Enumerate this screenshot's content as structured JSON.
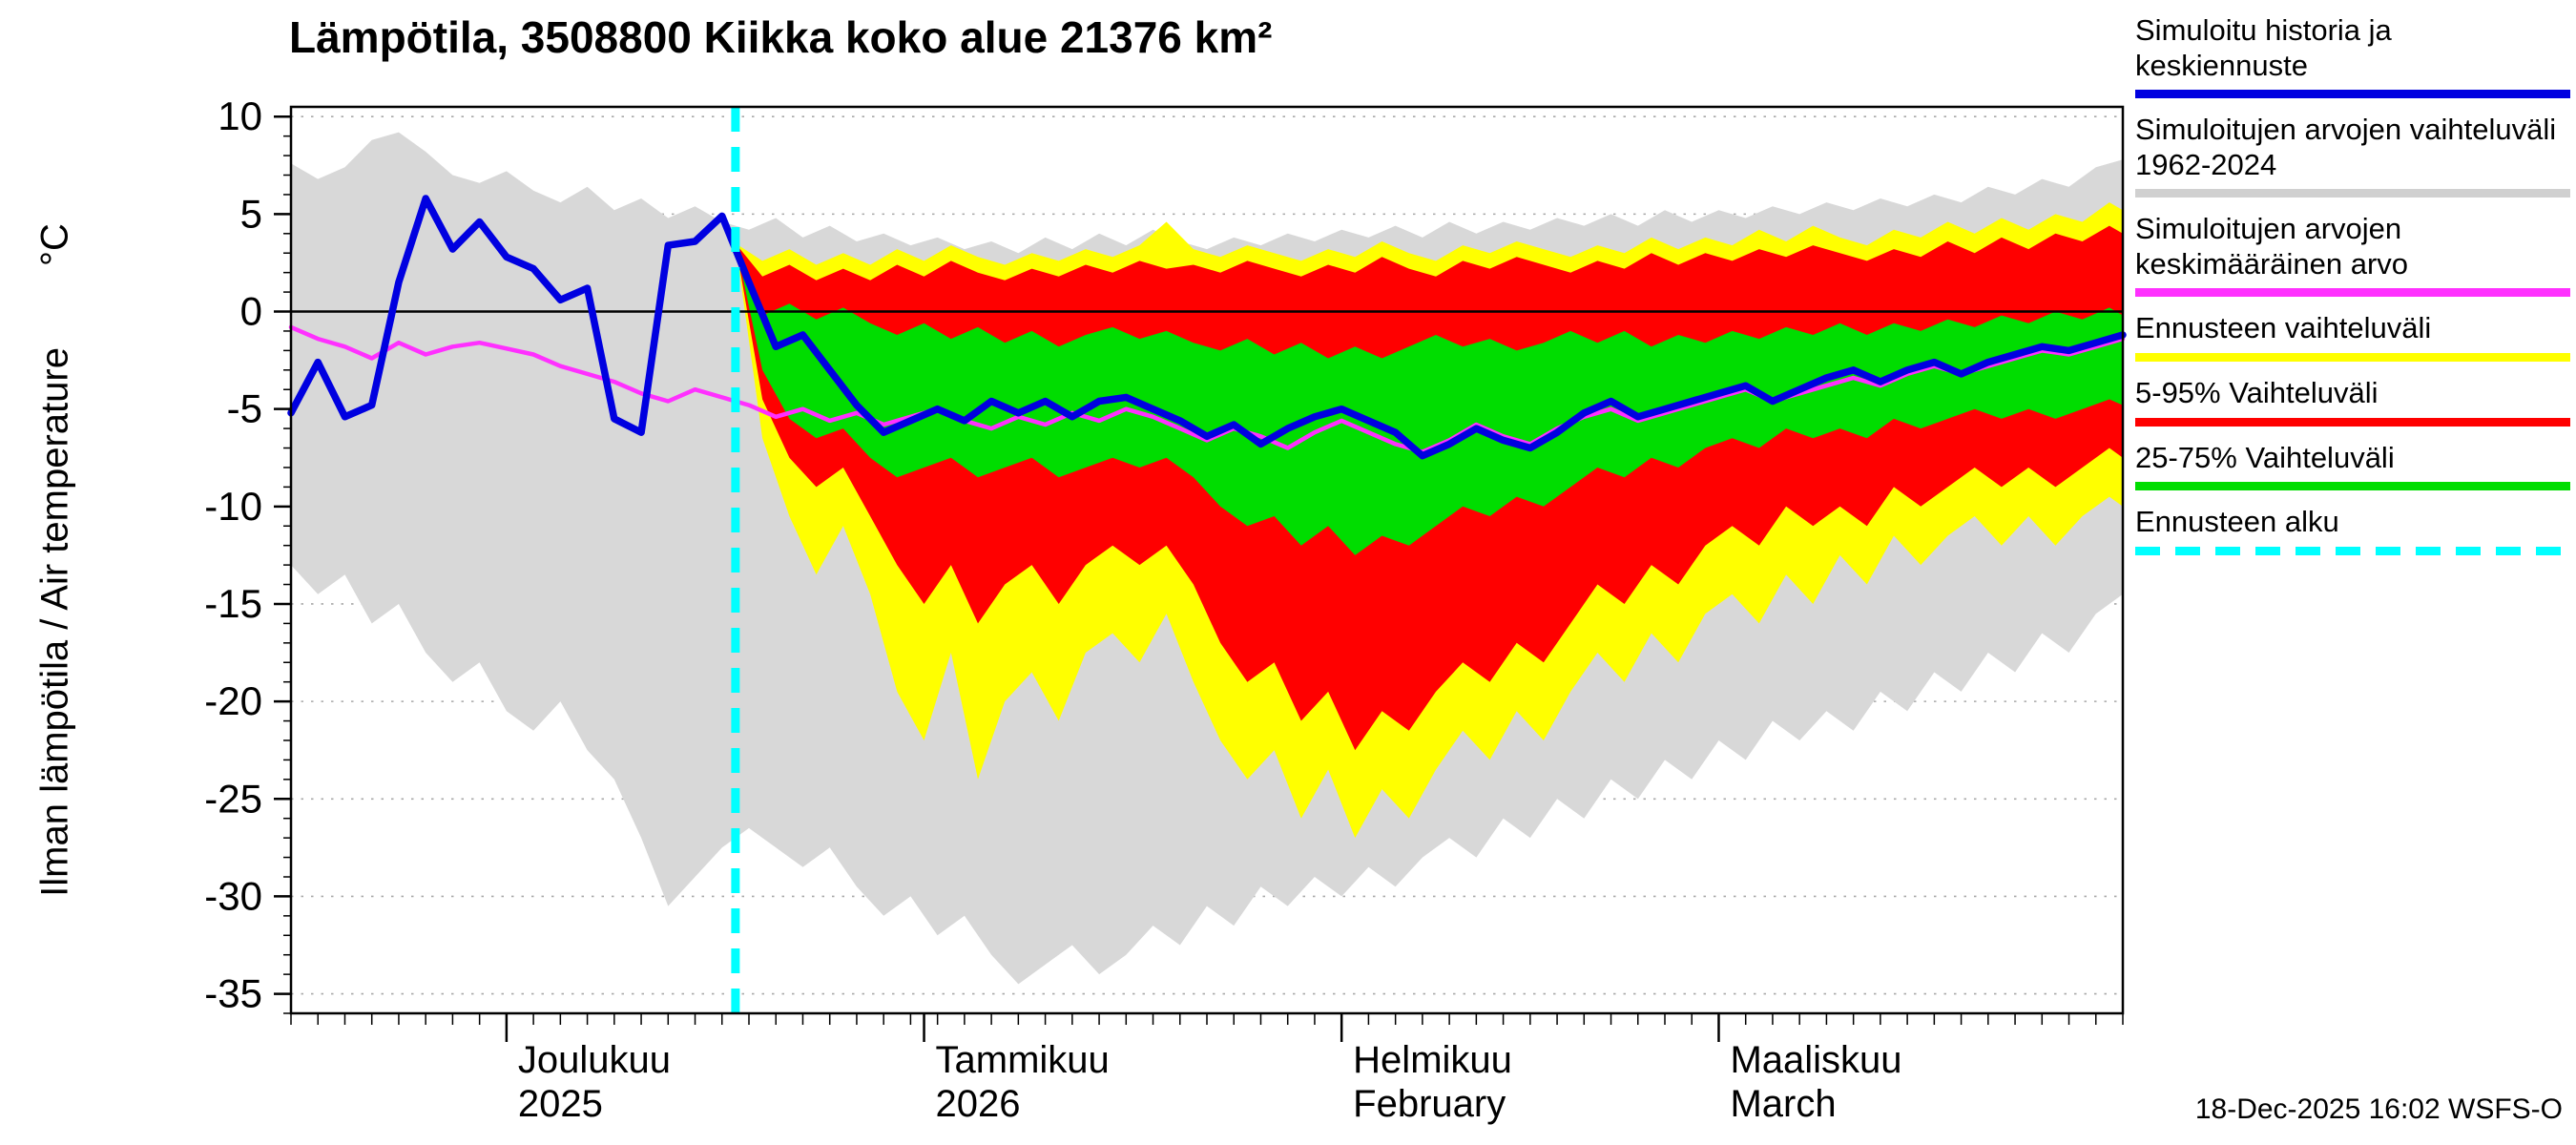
{
  "chart_data": {
    "type": "area",
    "title": "Lämpötila, 3508800 Kiikka koko alue 21376 km²",
    "ylabel": "Ilman lämpötila / Air temperature",
    "y_unit": "°C",
    "ylim": [
      -36,
      10.5
    ],
    "yticks": [
      10,
      5,
      0,
      -5,
      -10,
      -15,
      -20,
      -25,
      -30,
      -35
    ],
    "x_max_day": 136,
    "x_minor_tick_step_days": 2,
    "month_ticks": [
      {
        "day": 16,
        "line1": "Joulukuu",
        "line2": "2025"
      },
      {
        "day": 47,
        "line1": "Tammikuu",
        "line2": "2026"
      },
      {
        "day": 78,
        "line1": "Helmikuu",
        "line2": "February"
      },
      {
        "day": 106,
        "line1": "Maaliskuu",
        "line2": "March"
      }
    ],
    "forecast_start_day": 33,
    "forecast_start_color": "#00ffff",
    "zero_line": true,
    "bands": [
      {
        "name": "simulated-history-range",
        "legend": "Simuloitujen arvojen vaihteluväli 1962-2024",
        "color": "#d8d8d8",
        "x0": 0,
        "step": 2,
        "upper": [
          7.6,
          6.8,
          7.4,
          8.8,
          9.2,
          8.2,
          7.0,
          6.6,
          7.2,
          6.2,
          5.6,
          6.4,
          5.2,
          5.8,
          4.8,
          5.4,
          4.6,
          4.2,
          4.8,
          3.8,
          4.4,
          3.6,
          4.0,
          3.4,
          3.8,
          3.2,
          3.6,
          3.0,
          3.8,
          3.2,
          4.0,
          3.4,
          4.2,
          3.6,
          3.2,
          3.8,
          3.4,
          4.0,
          3.6,
          4.2,
          3.8,
          4.4,
          3.8,
          4.6,
          4.0,
          4.6,
          4.2,
          4.8,
          4.4,
          5.0,
          4.4,
          5.2,
          4.6,
          5.2,
          4.8,
          5.4,
          5.0,
          5.6,
          5.2,
          5.8,
          5.4,
          6.0,
          5.6,
          6.4,
          6.0,
          6.8,
          6.4,
          7.4,
          7.8
        ],
        "lower": [
          -13.0,
          -14.5,
          -13.5,
          -16.0,
          -15.0,
          -17.5,
          -19.0,
          -18.0,
          -20.5,
          -21.5,
          -20.0,
          -22.5,
          -24.0,
          -27.0,
          -30.5,
          -29.0,
          -27.5,
          -26.5,
          -27.5,
          -28.5,
          -27.5,
          -29.5,
          -31.0,
          -30.0,
          -32.0,
          -31.0,
          -33.0,
          -34.5,
          -33.5,
          -32.5,
          -34.0,
          -33.0,
          -31.5,
          -32.5,
          -30.5,
          -31.5,
          -29.5,
          -30.5,
          -29.0,
          -30.0,
          -28.5,
          -29.5,
          -28.0,
          -27.0,
          -28.0,
          -26.0,
          -27.0,
          -25.0,
          -26.0,
          -24.0,
          -25.0,
          -23.0,
          -24.0,
          -22.0,
          -23.0,
          -21.0,
          -22.0,
          -20.5,
          -21.5,
          -19.5,
          -20.5,
          -18.5,
          -19.5,
          -17.5,
          -18.5,
          -16.5,
          -17.5,
          -15.5,
          -14.5
        ]
      },
      {
        "name": "forecast-range",
        "legend": "Ennusteen vaihteluväli",
        "color": "#ffff00",
        "x0": 33,
        "step": 2,
        "upper": [
          3.5,
          2.6,
          3.2,
          2.4,
          3.0,
          2.4,
          3.2,
          2.6,
          3.4,
          2.8,
          2.4,
          3.0,
          2.6,
          3.2,
          2.8,
          3.4,
          4.6,
          3.2,
          2.8,
          3.4,
          3.0,
          2.6,
          3.2,
          2.8,
          3.6,
          3.0,
          2.6,
          3.4,
          3.0,
          3.6,
          3.2,
          2.8,
          3.4,
          3.0,
          3.8,
          3.2,
          3.8,
          3.4,
          4.2,
          3.6,
          4.4,
          3.8,
          3.4,
          4.2,
          3.8,
          4.6,
          4.0,
          4.8,
          4.2,
          5.0,
          4.6,
          5.6,
          5.2
        ],
        "lower": [
          3.5,
          -6.5,
          -10.5,
          -13.5,
          -11.0,
          -14.5,
          -19.5,
          -22.0,
          -17.5,
          -24.0,
          -20.0,
          -18.5,
          -21.0,
          -17.5,
          -16.5,
          -18.0,
          -15.5,
          -19.0,
          -22.0,
          -24.0,
          -22.5,
          -26.0,
          -23.5,
          -27.0,
          -24.5,
          -26.0,
          -23.5,
          -21.5,
          -23.0,
          -20.5,
          -22.0,
          -19.5,
          -17.5,
          -19.0,
          -16.5,
          -18.0,
          -15.5,
          -14.5,
          -16.0,
          -13.5,
          -15.0,
          -12.5,
          -14.0,
          -11.5,
          -13.0,
          -11.5,
          -10.5,
          -12.0,
          -10.5,
          -12.0,
          -10.5,
          -9.5,
          -10.0
        ]
      },
      {
        "name": "range-5-95",
        "legend": "5-95% Vaihteluväli",
        "color": "#ff0000",
        "x0": 33,
        "step": 2,
        "upper": [
          3.5,
          1.8,
          2.4,
          1.6,
          2.2,
          1.6,
          2.4,
          1.8,
          2.6,
          2.0,
          1.6,
          2.2,
          1.8,
          2.4,
          2.0,
          2.6,
          2.2,
          2.4,
          2.0,
          2.6,
          2.2,
          1.8,
          2.4,
          2.0,
          2.8,
          2.2,
          1.8,
          2.6,
          2.2,
          2.8,
          2.4,
          2.0,
          2.6,
          2.2,
          3.0,
          2.4,
          3.0,
          2.6,
          3.2,
          2.8,
          3.4,
          3.0,
          2.6,
          3.2,
          2.8,
          3.6,
          3.0,
          3.8,
          3.2,
          4.0,
          3.6,
          4.4,
          4.0
        ],
        "lower": [
          3.5,
          -4.5,
          -7.5,
          -9.0,
          -8.0,
          -10.5,
          -13.0,
          -15.0,
          -13.0,
          -16.0,
          -14.0,
          -13.0,
          -15.0,
          -13.0,
          -12.0,
          -13.0,
          -12.0,
          -14.0,
          -17.0,
          -19.0,
          -18.0,
          -21.0,
          -19.5,
          -22.5,
          -20.5,
          -21.5,
          -19.5,
          -18.0,
          -19.0,
          -17.0,
          -18.0,
          -16.0,
          -14.0,
          -15.0,
          -13.0,
          -14.0,
          -12.0,
          -11.0,
          -12.0,
          -10.0,
          -11.0,
          -10.0,
          -11.0,
          -9.0,
          -10.0,
          -9.0,
          -8.0,
          -9.0,
          -8.0,
          -9.0,
          -8.0,
          -7.0,
          -7.5
        ]
      },
      {
        "name": "range-25-75",
        "legend": "25-75% Vaihteluväli",
        "color": "#00dd00",
        "x0": 33,
        "step": 2,
        "upper": [
          3.5,
          -0.2,
          0.4,
          -0.4,
          0.2,
          -0.6,
          -1.2,
          -0.6,
          -1.4,
          -0.8,
          -1.6,
          -1.0,
          -1.8,
          -1.2,
          -0.8,
          -1.4,
          -1.0,
          -1.6,
          -2.0,
          -1.4,
          -2.2,
          -1.6,
          -2.4,
          -1.8,
          -2.4,
          -1.8,
          -1.2,
          -1.8,
          -1.4,
          -2.0,
          -1.6,
          -1.0,
          -1.6,
          -1.0,
          -1.8,
          -1.2,
          -1.6,
          -1.0,
          -1.4,
          -0.8,
          -1.2,
          -0.6,
          -1.2,
          -0.6,
          -1.0,
          -0.4,
          -0.8,
          -0.2,
          -0.6,
          0.0,
          -0.4,
          0.2,
          -0.2
        ],
        "lower": [
          3.5,
          -3.0,
          -5.5,
          -6.5,
          -6.0,
          -7.5,
          -8.5,
          -8.0,
          -7.5,
          -8.5,
          -8.0,
          -7.5,
          -8.5,
          -8.0,
          -7.5,
          -8.0,
          -7.5,
          -8.5,
          -10.0,
          -11.0,
          -10.5,
          -12.0,
          -11.0,
          -12.5,
          -11.5,
          -12.0,
          -11.0,
          -10.0,
          -10.5,
          -9.5,
          -10.0,
          -9.0,
          -8.0,
          -8.5,
          -7.5,
          -8.0,
          -7.0,
          -6.5,
          -7.0,
          -6.0,
          -6.5,
          -6.0,
          -6.5,
          -5.5,
          -6.0,
          -5.5,
          -5.0,
          -5.5,
          -5.0,
          -5.5,
          -5.0,
          -4.5,
          -4.8
        ]
      }
    ],
    "lines": [
      {
        "name": "simulated-mean",
        "legend": "Simuloitujen arvojen keskimääräinen arvo",
        "color": "#ff30ff",
        "width": 4.5,
        "x0": 0,
        "step": 2,
        "values": [
          -0.8,
          -1.4,
          -1.8,
          -2.4,
          -1.6,
          -2.2,
          -1.8,
          -1.6,
          -1.9,
          -2.2,
          -2.8,
          -3.2,
          -3.6,
          -4.2,
          -4.6,
          -4.0,
          -4.4,
          -4.8,
          -5.4,
          -5.0,
          -5.6,
          -5.2,
          -5.8,
          -5.4,
          -5.0,
          -5.6,
          -6.0,
          -5.4,
          -5.8,
          -5.2,
          -5.6,
          -5.0,
          -5.4,
          -6.0,
          -6.6,
          -6.0,
          -6.4,
          -7.0,
          -6.2,
          -5.6,
          -6.2,
          -6.8,
          -7.2,
          -6.6,
          -5.8,
          -6.4,
          -6.8,
          -6.0,
          -5.4,
          -5.0,
          -5.6,
          -5.2,
          -4.8,
          -4.4,
          -4.0,
          -4.6,
          -4.2,
          -3.8,
          -3.4,
          -3.8,
          -3.2,
          -2.8,
          -3.2,
          -2.8,
          -2.4,
          -2.0,
          -2.2,
          -1.8,
          -1.4
        ]
      },
      {
        "name": "history-and-mean-forecast",
        "legend": "Simuloitu historia ja keskiennuste",
        "color": "#0000e0",
        "width": 7.5,
        "x0": 0,
        "step": 2,
        "values": [
          -5.2,
          -2.6,
          -5.4,
          -4.8,
          1.5,
          5.8,
          3.2,
          4.6,
          2.8,
          2.2,
          0.6,
          1.2,
          -5.5,
          -6.2,
          3.4,
          3.6,
          4.9,
          1.5,
          -1.8,
          -1.2,
          -3.0,
          -4.8,
          -6.2,
          -5.6,
          -5.0,
          -5.6,
          -4.6,
          -5.2,
          -4.6,
          -5.4,
          -4.6,
          -4.4,
          -5.0,
          -5.6,
          -6.4,
          -5.8,
          -6.8,
          -6.0,
          -5.4,
          -5.0,
          -5.6,
          -6.2,
          -7.4,
          -6.8,
          -6.0,
          -6.6,
          -7.0,
          -6.2,
          -5.2,
          -4.6,
          -5.4,
          -5.0,
          -4.6,
          -4.2,
          -3.8,
          -4.6,
          -4.0,
          -3.4,
          -3.0,
          -3.6,
          -3.0,
          -2.6,
          -3.2,
          -2.6,
          -2.2,
          -1.8,
          -2.0,
          -1.6,
          -1.2
        ]
      }
    ],
    "legend": [
      {
        "label": "Simuloitu historia ja keskiennuste",
        "color": "#0000e0",
        "dash": false
      },
      {
        "label": "Simuloitujen arvojen vaihteluväli 1962-2024",
        "color": "#d0d0d0",
        "dash": false
      },
      {
        "label": "Simuloitujen arvojen keskimääräinen arvo",
        "color": "#ff30ff",
        "dash": false
      },
      {
        "label": "Ennusteen vaihteluväli",
        "color": "#ffff00",
        "dash": false
      },
      {
        "label": "5-95% Vaihteluväli",
        "color": "#ff0000",
        "dash": false
      },
      {
        "label": "25-75% Vaihteluväli",
        "color": "#00dd00",
        "dash": false
      },
      {
        "label": "Ennusteen alku",
        "color": "#00ffff",
        "dash": true
      }
    ],
    "footer": "18-Dec-2025 16:02  WSFS-O"
  }
}
